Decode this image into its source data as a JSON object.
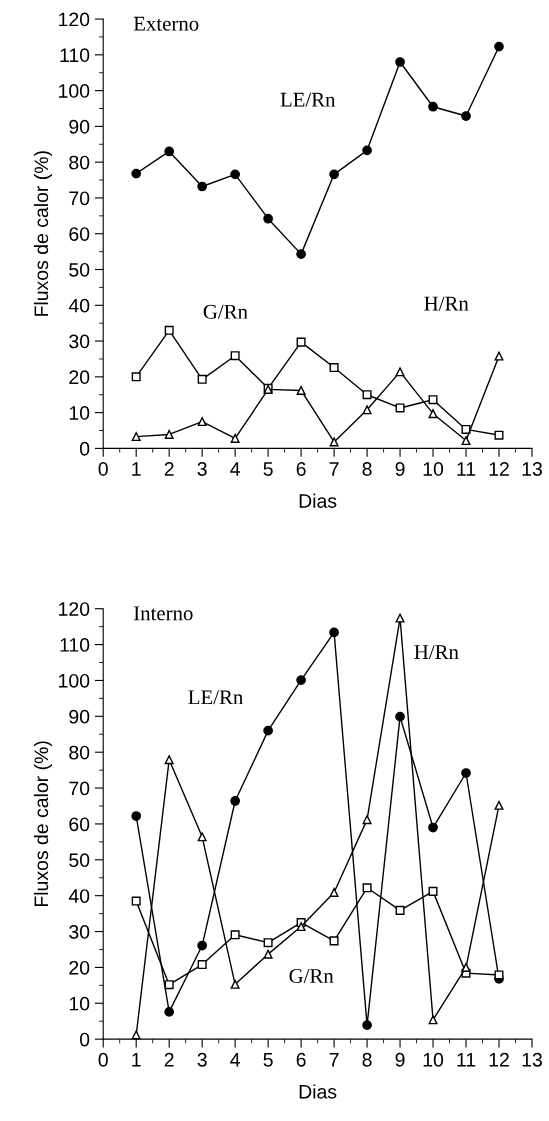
{
  "chart_data": [
    {
      "type": "line",
      "xlabel": "Dias",
      "ylabel": "Fluxos de calor (%)",
      "x": [
        1,
        2,
        3,
        4,
        5,
        6,
        7,
        8,
        9,
        10,
        11,
        12
      ],
      "xlim": [
        0,
        13
      ],
      "xticks": [
        0,
        1,
        2,
        3,
        4,
        5,
        6,
        7,
        8,
        9,
        10,
        11,
        12,
        13
      ],
      "ylim": [
        0,
        120
      ],
      "yticks": [
        0,
        10,
        20,
        30,
        40,
        50,
        60,
        70,
        80,
        90,
        100,
        110,
        120
      ],
      "grid": false,
      "legend": false,
      "line_style": "solid",
      "series": [
        {
          "name": "LE/Rn",
          "color": "#000000",
          "marker": "circle_filled",
          "values": [
            76.8,
            83,
            73.2,
            76.6,
            64.2,
            54.3,
            76.6,
            83.3,
            108,
            95.5,
            92.9,
            112.3
          ]
        },
        {
          "name": "G/Rn",
          "color": "#000000",
          "marker": "square",
          "values": [
            20,
            33,
            19.3,
            25.9,
            16.8,
            29.7,
            22.6,
            15,
            11.3,
            13.6,
            5.3,
            3.7
          ]
        },
        {
          "name": "H/Rn",
          "color": "#000000",
          "marker": "triangle",
          "values": [
            3.3,
            3.9,
            7.5,
            2.8,
            16.5,
            16.2,
            1.8,
            10.8,
            21.4,
            9.7,
            2.2,
            25.8
          ]
        }
      ],
      "annotations": [
        "Externo"
      ]
    },
    {
      "type": "line",
      "xlabel": "Dias",
      "ylabel": "Fluxos de calor (%)",
      "x": [
        1,
        2,
        3,
        4,
        5,
        6,
        7,
        8,
        9,
        10,
        11,
        12
      ],
      "xlim": [
        0,
        13
      ],
      "xticks": [
        0,
        1,
        2,
        3,
        4,
        5,
        6,
        7,
        8,
        9,
        10,
        11,
        12,
        13
      ],
      "ylim": [
        0,
        120
      ],
      "yticks": [
        0,
        10,
        20,
        30,
        40,
        50,
        60,
        70,
        80,
        90,
        100,
        110,
        120
      ],
      "grid": false,
      "legend": false,
      "line_style": "solid",
      "series": [
        {
          "name": "LE/Rn",
          "color": "#000000",
          "marker": "circle_filled",
          "values": [
            62.2,
            7.6,
            26.1,
            66.4,
            86,
            100.1,
            113.4,
            3.9,
            89.9,
            59,
            74.2,
            16.8
          ]
        },
        {
          "name": "G/Rn",
          "color": "#000000",
          "marker": "square",
          "values": [
            38.5,
            15.2,
            20.8,
            29.1,
            26.9,
            32.5,
            27.4,
            42.2,
            35.9,
            41.2,
            18.4,
            17.9
          ]
        },
        {
          "name": "H/Rn",
          "color": "#000000",
          "marker": "triangle",
          "values": [
            1.2,
            77.9,
            56.4,
            15.3,
            23.7,
            31.4,
            40.9,
            61.2,
            117.4,
            5.4,
            20,
            65.2
          ]
        }
      ],
      "annotations": [
        "Interno"
      ]
    }
  ]
}
